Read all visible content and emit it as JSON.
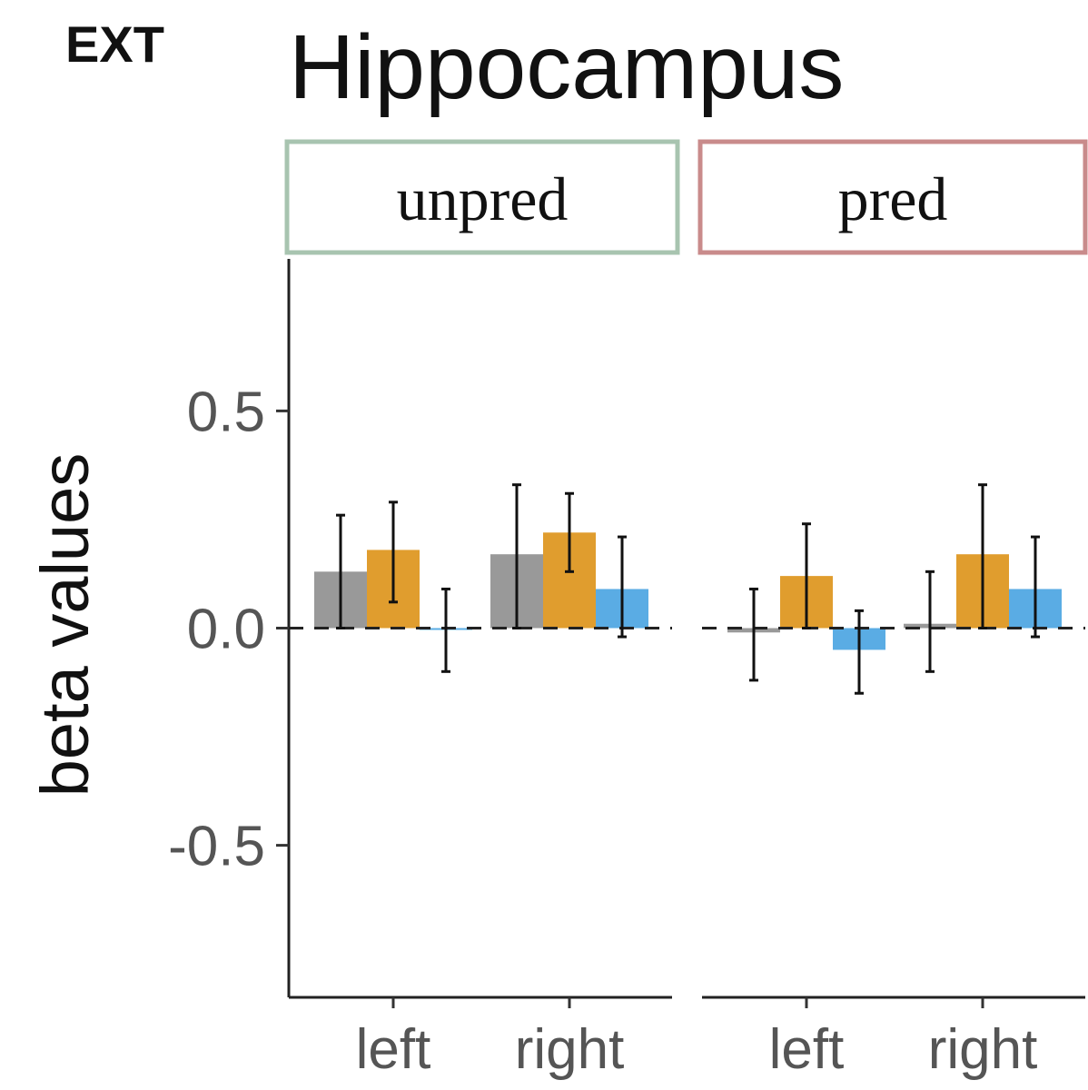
{
  "panel_tag": "EXT",
  "chart_data": {
    "type": "bar",
    "title": "Hippocampus",
    "ylabel": "beta values",
    "xlabel": "",
    "ylim": [
      -0.85,
      0.85
    ],
    "yticks": [
      {
        "value": 0.5,
        "label": "0.5"
      },
      {
        "value": 0.0,
        "label": "0.0"
      },
      {
        "value": -0.5,
        "label": "-0.5"
      }
    ],
    "facets": [
      {
        "label": "unpred",
        "border_color": "#a8c4b0",
        "categories": [
          "left",
          "right"
        ],
        "series": [
          {
            "color": "#999999",
            "values": [
              0.13,
              0.17
            ],
            "err_low": [
              0.0,
              0.0
            ],
            "err_high": [
              0.26,
              0.33
            ]
          },
          {
            "color": "#e09d2e",
            "values": [
              0.18,
              0.22
            ],
            "err_low": [
              0.06,
              0.13
            ],
            "err_high": [
              0.29,
              0.31
            ]
          },
          {
            "color": "#5aace4",
            "values": [
              0.0,
              0.09
            ],
            "err_low": [
              -0.1,
              -0.02
            ],
            "err_high": [
              0.09,
              0.21
            ]
          }
        ]
      },
      {
        "label": "pred",
        "border_color": "#c98b8b",
        "categories": [
          "left",
          "right"
        ],
        "series": [
          {
            "color": "#999999",
            "values": [
              -0.01,
              0.01
            ],
            "err_low": [
              -0.12,
              -0.1
            ],
            "err_high": [
              0.09,
              0.13
            ]
          },
          {
            "color": "#e09d2e",
            "values": [
              0.12,
              0.17
            ],
            "err_low": [
              0.0,
              0.0
            ],
            "err_high": [
              0.24,
              0.33
            ]
          },
          {
            "color": "#5aace4",
            "values": [
              -0.05,
              0.09
            ],
            "err_low": [
              -0.15,
              -0.02
            ],
            "err_high": [
              0.04,
              0.21
            ]
          }
        ]
      }
    ],
    "reference_line": 0.0,
    "grid": false,
    "legend": "none"
  }
}
